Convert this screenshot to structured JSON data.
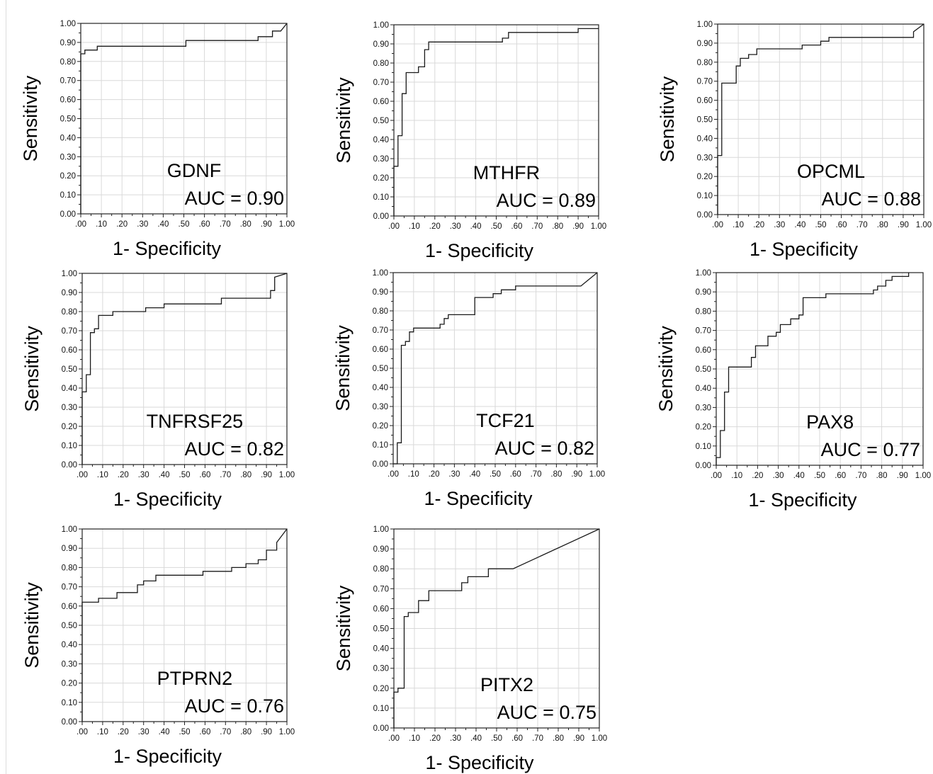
{
  "panels": [
    {
      "gene": "GDNF",
      "auc_label": "AUC = 0.90",
      "ylabel": "Sensitivity",
      "xlabel": "1- Specificity",
      "xticks": [
        ".00",
        ".10",
        ".20",
        ".30",
        ".40",
        ".50",
        ".60",
        ".70",
        ".80",
        ".90",
        "1.00"
      ]
    },
    {
      "gene": "MTHFR",
      "auc_label": "AUC = 0.89",
      "ylabel": "Sensitivity",
      "xlabel": "1- Specificity",
      "xticks": [
        ".00",
        ".10",
        ".20",
        ".30",
        ".40",
        ".50",
        ".60",
        ".70",
        ".80",
        ".90",
        "1.00"
      ]
    },
    {
      "gene": "OPCML",
      "auc_label": "AUC = 0.88",
      "ylabel": "Sensitivity",
      "xlabel": "1- Specificity",
      "xticks": [
        ".00",
        ".10",
        ".20",
        ".30",
        ".40",
        ".50",
        ".60",
        ".70",
        ".80",
        ".90",
        "1.00"
      ]
    },
    {
      "gene": "TNFRSF25",
      "auc_label": "AUC = 0.82",
      "ylabel": "Sensitivity",
      "xlabel": "1- Specificity",
      "xticks": [
        ".00",
        ".10",
        ".20",
        ".30",
        ".40",
        ".50",
        ".60",
        ".70",
        ".80",
        ".90",
        "1.00"
      ]
    },
    {
      "gene": "TCF21",
      "auc_label": "AUC = 0.82",
      "ylabel": "Sensitivity",
      "xlabel": "1- Specificity",
      "xticks": [
        ".00",
        ".10",
        ".20",
        ".30",
        ".40",
        ".50",
        ".60",
        ".70",
        ".80",
        ".90",
        "1.00"
      ]
    },
    {
      "gene": "PAX8",
      "auc_label": "AUC = 0.77",
      "ylabel": "Sensitivity",
      "xlabel": "1- Specificity",
      "xticks": [
        ".00",
        ".10",
        ".20",
        ".30",
        ".40",
        ".50",
        ".60",
        ".70",
        ".80",
        ".90",
        "1.00"
      ]
    },
    {
      "gene": "PTPRN2",
      "auc_label": "AUC = 0.76",
      "ylabel": "Sensitivity",
      "xlabel": "1- Specificity",
      "xticks": [
        ".00",
        ".10",
        ".20",
        ".30",
        ".40",
        ".50",
        ".60",
        ".70",
        ".80",
        ".90",
        "1.00"
      ]
    },
    {
      "gene": "PITX2",
      "auc_label": "AUC = 0.75",
      "ylabel": "Sensitivity",
      "xlabel": "1- Specificity",
      "xticks": [
        ".00",
        ".10",
        ".20",
        ".30",
        ".40",
        ".50",
        ".60",
        ".70",
        ".80",
        ".90",
        "1.00"
      ]
    }
  ],
  "chart_data": [
    {
      "type": "line",
      "title": "GDNF",
      "xlabel": "1- Specificity",
      "ylabel": "Sensitivity",
      "xlim": [
        0,
        1
      ],
      "ylim": [
        0,
        1
      ],
      "grid": true,
      "annotation": "AUC = 0.90",
      "x": [
        0,
        0,
        0.02,
        0.02,
        0.08,
        0.08,
        0.51,
        0.51,
        0.86,
        0.86,
        0.93,
        0.93,
        0.97,
        1.0
      ],
      "y": [
        0,
        0.84,
        0.84,
        0.86,
        0.86,
        0.88,
        0.88,
        0.91,
        0.91,
        0.93,
        0.93,
        0.96,
        0.96,
        1.0
      ]
    },
    {
      "type": "line",
      "title": "MTHFR",
      "xlabel": "1- Specificity",
      "ylabel": "Sensitivity",
      "xlim": [
        0,
        1
      ],
      "ylim": [
        0,
        1
      ],
      "grid": true,
      "annotation": "AUC = 0.89",
      "x": [
        0,
        0,
        0.02,
        0.02,
        0.04,
        0.04,
        0.06,
        0.06,
        0.12,
        0.12,
        0.15,
        0.15,
        0.17,
        0.17,
        0.53,
        0.53,
        0.56,
        0.56,
        0.9,
        0.9,
        1.0
      ],
      "y": [
        0,
        0.26,
        0.26,
        0.42,
        0.42,
        0.64,
        0.64,
        0.75,
        0.75,
        0.78,
        0.78,
        0.87,
        0.87,
        0.91,
        0.91,
        0.93,
        0.93,
        0.96,
        0.96,
        0.98,
        0.98
      ]
    },
    {
      "type": "line",
      "title": "OPCML",
      "xlabel": "1- Specificity",
      "ylabel": "Sensitivity",
      "xlim": [
        0,
        1
      ],
      "ylim": [
        0,
        1
      ],
      "grid": true,
      "annotation": "AUC = 0.88",
      "x": [
        0,
        0,
        0.02,
        0.02,
        0.09,
        0.09,
        0.11,
        0.11,
        0.15,
        0.15,
        0.19,
        0.19,
        0.41,
        0.41,
        0.5,
        0.5,
        0.54,
        0.54,
        0.95,
        0.95,
        1.0
      ],
      "y": [
        0,
        0.31,
        0.31,
        0.69,
        0.69,
        0.78,
        0.78,
        0.82,
        0.82,
        0.84,
        0.84,
        0.87,
        0.87,
        0.89,
        0.89,
        0.91,
        0.91,
        0.93,
        0.93,
        0.96,
        1.0
      ]
    },
    {
      "type": "line",
      "title": "TNFRSF25",
      "xlabel": "1- Specificity",
      "ylabel": "Sensitivity",
      "xlim": [
        0,
        1
      ],
      "ylim": [
        0,
        1
      ],
      "grid": true,
      "annotation": "AUC = 0.82",
      "x": [
        0,
        0,
        0.02,
        0.02,
        0.04,
        0.04,
        0.06,
        0.06,
        0.08,
        0.08,
        0.15,
        0.15,
        0.31,
        0.31,
        0.4,
        0.4,
        0.68,
        0.68,
        0.92,
        0.92,
        0.94,
        0.94,
        1.0
      ],
      "y": [
        0,
        0.38,
        0.38,
        0.47,
        0.47,
        0.69,
        0.69,
        0.71,
        0.71,
        0.78,
        0.78,
        0.8,
        0.8,
        0.82,
        0.82,
        0.84,
        0.84,
        0.87,
        0.87,
        0.91,
        0.91,
        0.98,
        1.0
      ]
    },
    {
      "type": "line",
      "title": "TCF21",
      "xlabel": "1- Specificity",
      "ylabel": "Sensitivity",
      "xlim": [
        0,
        1
      ],
      "ylim": [
        0,
        1
      ],
      "grid": true,
      "annotation": "AUC = 0.82",
      "x": [
        0,
        0.02,
        0.02,
        0.04,
        0.04,
        0.06,
        0.06,
        0.08,
        0.08,
        0.1,
        0.1,
        0.23,
        0.23,
        0.25,
        0.25,
        0.27,
        0.27,
        0.4,
        0.4,
        0.49,
        0.49,
        0.53,
        0.53,
        0.6,
        0.6,
        0.92,
        1.0
      ],
      "y": [
        0,
        0,
        0.11,
        0.11,
        0.62,
        0.62,
        0.64,
        0.64,
        0.69,
        0.69,
        0.71,
        0.71,
        0.73,
        0.73,
        0.76,
        0.76,
        0.78,
        0.78,
        0.87,
        0.87,
        0.89,
        0.89,
        0.91,
        0.91,
        0.93,
        0.93,
        1.0
      ]
    },
    {
      "type": "line",
      "title": "PAX8",
      "xlabel": "1- Specificity",
      "ylabel": "Sensitivity",
      "xlim": [
        0,
        1
      ],
      "ylim": [
        0,
        1
      ],
      "grid": true,
      "annotation": "AUC = 0.77",
      "x": [
        0,
        0,
        0.02,
        0.02,
        0.04,
        0.04,
        0.06,
        0.06,
        0.08,
        0.08,
        0.17,
        0.17,
        0.19,
        0.19,
        0.25,
        0.25,
        0.29,
        0.29,
        0.31,
        0.31,
        0.36,
        0.36,
        0.4,
        0.4,
        0.42,
        0.42,
        0.53,
        0.53,
        0.76,
        0.76,
        0.78,
        0.78,
        0.82,
        0.82,
        0.85,
        0.85,
        0.93,
        0.93
      ],
      "y": [
        0,
        0.04,
        0.04,
        0.18,
        0.18,
        0.38,
        0.38,
        0.51,
        0.51,
        0.51,
        0.51,
        0.56,
        0.56,
        0.62,
        0.62,
        0.67,
        0.67,
        0.69,
        0.69,
        0.73,
        0.73,
        0.76,
        0.76,
        0.78,
        0.78,
        0.87,
        0.87,
        0.89,
        0.89,
        0.91,
        0.91,
        0.93,
        0.93,
        0.96,
        0.96,
        0.98,
        0.98,
        1.0
      ]
    },
    {
      "type": "line",
      "title": "PTPRN2",
      "xlabel": "1- Specificity",
      "ylabel": "Sensitivity",
      "xlim": [
        0,
        1
      ],
      "ylim": [
        0,
        1
      ],
      "grid": true,
      "annotation": "AUC = 0.76",
      "x": [
        0,
        0,
        0.08,
        0.08,
        0.17,
        0.17,
        0.27,
        0.27,
        0.3,
        0.3,
        0.36,
        0.36,
        0.59,
        0.59,
        0.73,
        0.73,
        0.8,
        0.8,
        0.86,
        0.86,
        0.9,
        0.9,
        0.95,
        0.95,
        1.0
      ],
      "y": [
        0,
        0.62,
        0.62,
        0.64,
        0.64,
        0.67,
        0.67,
        0.71,
        0.71,
        0.73,
        0.73,
        0.76,
        0.76,
        0.78,
        0.78,
        0.8,
        0.8,
        0.82,
        0.82,
        0.84,
        0.84,
        0.89,
        0.89,
        0.93,
        1.0
      ]
    },
    {
      "type": "line",
      "title": "PITX2",
      "xlabel": "1- Specificity",
      "ylabel": "Sensitivity",
      "xlim": [
        0,
        1
      ],
      "ylim": [
        0,
        1
      ],
      "grid": true,
      "annotation": "AUC = 0.75",
      "x": [
        0,
        0,
        0.02,
        0.02,
        0.05,
        0.05,
        0.07,
        0.07,
        0.12,
        0.12,
        0.17,
        0.17,
        0.33,
        0.33,
        0.36,
        0.36,
        0.46,
        0.46,
        0.58,
        1.0
      ],
      "y": [
        0,
        0.18,
        0.18,
        0.2,
        0.2,
        0.56,
        0.56,
        0.58,
        0.58,
        0.64,
        0.64,
        0.69,
        0.69,
        0.73,
        0.73,
        0.76,
        0.76,
        0.8,
        0.8,
        1.0
      ]
    }
  ]
}
